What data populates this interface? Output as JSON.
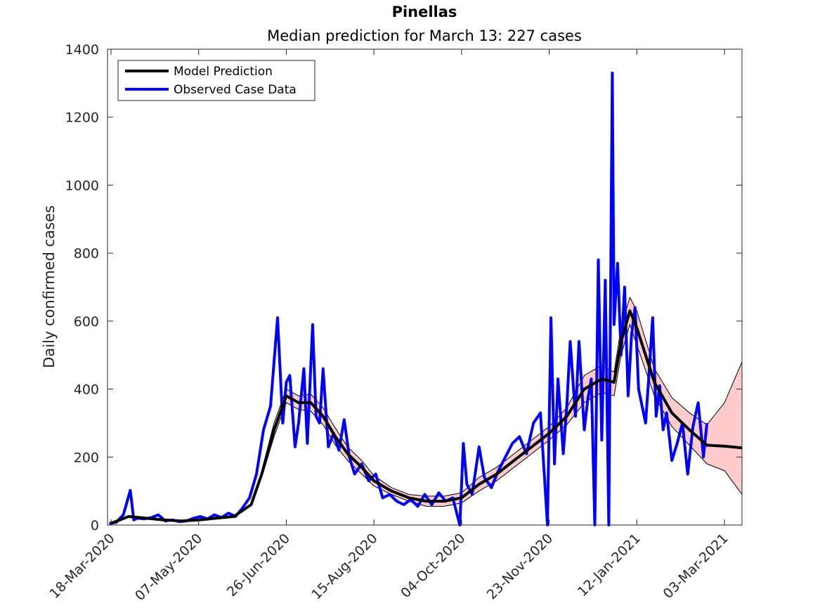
{
  "chart_data": {
    "type": "line",
    "title": "Pinellas",
    "subtitle": "Median prediction for March 13: 227 cases",
    "xlabel": "",
    "ylabel": "Daily confirmed cases",
    "xlim": [
      "2020-03-16",
      "2021-03-13"
    ],
    "ylim": [
      0,
      1400
    ],
    "x_ticks": [
      "18-Mar-2020",
      "07-May-2020",
      "26-Jun-2020",
      "15-Aug-2020",
      "04-Oct-2020",
      "23-Nov-2020",
      "12-Jan-2021",
      "03-Mar-2021"
    ],
    "y_ticks": [
      0,
      200,
      400,
      600,
      800,
      1000,
      1200,
      1400
    ],
    "grid": false,
    "legend_position": "top-left",
    "colors": {
      "prediction": "#000000",
      "observed": "#0000ff",
      "band_fill": "#ffcccc",
      "axis": "#262626"
    },
    "series": [
      {
        "name": "Model Prediction",
        "style": "thick-black-line",
        "x": [
          "2020-03-18",
          "2020-03-28",
          "2020-04-07",
          "2020-04-17",
          "2020-04-27",
          "2020-05-07",
          "2020-05-17",
          "2020-05-27",
          "2020-06-06",
          "2020-06-12",
          "2020-06-19",
          "2020-06-26",
          "2020-07-03",
          "2020-07-10",
          "2020-07-17",
          "2020-07-24",
          "2020-07-31",
          "2020-08-08",
          "2020-08-15",
          "2020-08-25",
          "2020-09-04",
          "2020-09-14",
          "2020-09-24",
          "2020-10-04",
          "2020-10-14",
          "2020-10-24",
          "2020-11-03",
          "2020-11-13",
          "2020-11-23",
          "2020-12-03",
          "2020-12-13",
          "2020-12-23",
          "2020-12-30",
          "2021-01-03",
          "2021-01-08",
          "2021-01-12",
          "2021-01-22",
          "2021-02-01",
          "2021-02-11",
          "2021-02-21",
          "2021-03-03",
          "2021-03-13"
        ],
        "y": [
          5,
          25,
          20,
          15,
          12,
          15,
          20,
          25,
          60,
          150,
          280,
          380,
          360,
          360,
          320,
          260,
          210,
          170,
          130,
          100,
          80,
          70,
          70,
          80,
          120,
          150,
          190,
          230,
          270,
          320,
          400,
          430,
          420,
          540,
          630,
          580,
          420,
          330,
          280,
          235,
          232,
          227
        ]
      },
      {
        "name": "Observed Case Data",
        "style": "blue-line",
        "x": [
          "2020-03-17",
          "2020-03-21",
          "2020-03-25",
          "2020-03-29",
          "2020-03-31",
          "2020-04-02",
          "2020-04-06",
          "2020-04-10",
          "2020-04-14",
          "2020-04-18",
          "2020-04-22",
          "2020-04-26",
          "2020-04-30",
          "2020-05-04",
          "2020-05-08",
          "2020-05-12",
          "2020-05-16",
          "2020-05-20",
          "2020-05-24",
          "2020-05-28",
          "2020-06-01",
          "2020-06-05",
          "2020-06-09",
          "2020-06-13",
          "2020-06-17",
          "2020-06-21",
          "2020-06-24",
          "2020-06-26",
          "2020-06-28",
          "2020-07-01",
          "2020-07-03",
          "2020-07-06",
          "2020-07-08",
          "2020-07-11",
          "2020-07-13",
          "2020-07-15",
          "2020-07-17",
          "2020-07-20",
          "2020-07-23",
          "2020-07-26",
          "2020-07-29",
          "2020-08-01",
          "2020-08-04",
          "2020-08-08",
          "2020-08-12",
          "2020-08-16",
          "2020-08-20",
          "2020-08-24",
          "2020-08-28",
          "2020-09-01",
          "2020-09-05",
          "2020-09-09",
          "2020-09-13",
          "2020-09-17",
          "2020-09-21",
          "2020-09-25",
          "2020-09-29",
          "2020-10-03",
          "2020-10-05",
          "2020-10-07",
          "2020-10-10",
          "2020-10-14",
          "2020-10-17",
          "2020-10-21",
          "2020-10-25",
          "2020-10-29",
          "2020-11-02",
          "2020-11-06",
          "2020-11-10",
          "2020-11-14",
          "2020-11-18",
          "2020-11-22",
          "2020-11-24",
          "2020-11-26",
          "2020-11-28",
          "2020-12-01",
          "2020-12-03",
          "2020-12-05",
          "2020-12-08",
          "2020-12-10",
          "2020-12-13",
          "2020-12-15",
          "2020-12-17",
          "2020-12-19",
          "2020-12-21",
          "2020-12-23",
          "2020-12-25",
          "2020-12-27",
          "2020-12-29",
          "2020-12-30",
          "2021-01-01",
          "2021-01-03",
          "2021-01-05",
          "2021-01-07",
          "2021-01-09",
          "2021-01-11",
          "2021-01-13",
          "2021-01-15",
          "2021-01-17",
          "2021-01-19",
          "2021-01-21",
          "2021-01-23",
          "2021-01-25",
          "2021-01-27",
          "2021-01-29",
          "2021-02-01",
          "2021-02-04",
          "2021-02-07",
          "2021-02-10",
          "2021-02-13",
          "2021-02-16",
          "2021-02-19",
          "2021-02-21"
        ],
        "y": [
          5,
          8,
          30,
          102,
          15,
          20,
          18,
          22,
          30,
          12,
          15,
          10,
          12,
          20,
          25,
          18,
          30,
          22,
          35,
          25,
          50,
          80,
          150,
          280,
          350,
          610,
          300,
          420,
          440,
          230,
          300,
          460,
          240,
          590,
          320,
          300,
          460,
          230,
          270,
          220,
          310,
          200,
          150,
          180,
          130,
          150,
          80,
          90,
          70,
          60,
          75,
          55,
          90,
          60,
          95,
          70,
          80,
          0,
          240,
          120,
          90,
          230,
          140,
          110,
          160,
          200,
          240,
          260,
          210,
          300,
          330,
          0,
          610,
          180,
          430,
          210,
          350,
          540,
          320,
          540,
          280,
          370,
          430,
          0,
          780,
          250,
          720,
          0,
          1330,
          590,
          770,
          500,
          700,
          380,
          560,
          640,
          400,
          350,
          300,
          450,
          610,
          320,
          410,
          280,
          330,
          190,
          240,
          300,
          150,
          290,
          360,
          200,
          300
        ]
      },
      {
        "name": "",
        "style": "uncertainty-upper",
        "x": [
          "2020-06-12",
          "2020-06-19",
          "2020-06-26",
          "2020-07-03",
          "2020-07-10",
          "2020-07-17",
          "2020-07-24",
          "2020-07-31",
          "2020-08-08",
          "2020-08-15",
          "2020-08-25",
          "2020-09-04",
          "2020-09-14",
          "2020-09-24",
          "2020-10-04",
          "2020-10-14",
          "2020-10-24",
          "2020-11-03",
          "2020-11-13",
          "2020-11-23",
          "2020-12-03",
          "2020-12-13",
          "2020-12-23",
          "2020-12-30",
          "2021-01-03",
          "2021-01-08",
          "2021-01-12",
          "2021-01-22",
          "2021-02-01",
          "2021-02-11",
          "2021-02-21",
          "2021-03-03",
          "2021-03-13"
        ],
        "y": [
          160,
          300,
          400,
          380,
          385,
          345,
          285,
          230,
          190,
          145,
          110,
          90,
          85,
          85,
          95,
          140,
          170,
          210,
          250,
          290,
          345,
          440,
          470,
          450,
          580,
          670,
          630,
          460,
          375,
          330,
          295,
          360,
          480
        ]
      },
      {
        "name": "",
        "style": "uncertainty-lower",
        "x": [
          "2020-06-12",
          "2020-06-19",
          "2020-06-26",
          "2020-07-03",
          "2020-07-10",
          "2020-07-17",
          "2020-07-24",
          "2020-07-31",
          "2020-08-08",
          "2020-08-15",
          "2020-08-25",
          "2020-09-04",
          "2020-09-14",
          "2020-09-24",
          "2020-10-04",
          "2020-10-14",
          "2020-10-24",
          "2020-11-03",
          "2020-11-13",
          "2020-11-23",
          "2020-12-03",
          "2020-12-13",
          "2020-12-23",
          "2020-12-30",
          "2021-01-03",
          "2021-01-08",
          "2021-01-12",
          "2021-01-22",
          "2021-02-01",
          "2021-02-11",
          "2021-02-21",
          "2021-03-03",
          "2021-03-13"
        ],
        "y": [
          140,
          260,
          360,
          340,
          335,
          295,
          235,
          190,
          150,
          115,
          90,
          70,
          55,
          55,
          65,
          100,
          130,
          170,
          210,
          250,
          295,
          360,
          390,
          380,
          500,
          590,
          530,
          380,
          290,
          235,
          180,
          160,
          90
        ]
      }
    ]
  }
}
